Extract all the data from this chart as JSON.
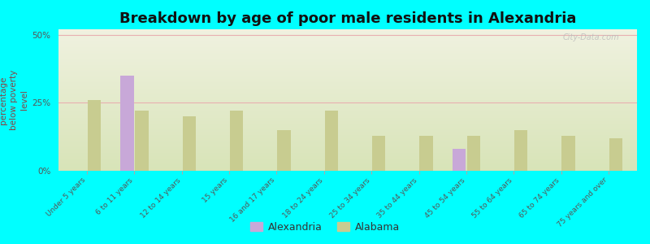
{
  "title": "Breakdown by age of poor male residents in Alexandria",
  "ylabel": "percentage\nbelow poverty\nlevel",
  "background_color": "#00FFFF",
  "plot_bg_top": "#f0f2e0",
  "plot_bg_bottom": "#d8e4b8",
  "categories": [
    "Under 5 years",
    "6 to 11 years",
    "12 to 14 years",
    "15 years",
    "16 and 17 years",
    "18 to 24 years",
    "25 to 34 years",
    "35 to 44 years",
    "45 to 54 years",
    "55 to 64 years",
    "65 to 74 years",
    "75 years and over"
  ],
  "alexandria_values": [
    0,
    35,
    0,
    0,
    0,
    0,
    0,
    0,
    8,
    0,
    0,
    0
  ],
  "alabama_values": [
    26,
    22,
    20,
    22,
    15,
    22,
    13,
    13,
    13,
    15,
    13,
    12
  ],
  "alexandria_color": "#c8a8d8",
  "alabama_color": "#c8cc90",
  "ylim": [
    0,
    52
  ],
  "yticks": [
    0,
    25,
    50
  ],
  "ytick_labels": [
    "0%",
    "25%",
    "50%"
  ],
  "bar_width": 0.28,
  "title_fontsize": 13,
  "axis_label_fontsize": 7.5,
  "tick_label_fontsize": 6.5,
  "legend_fontsize": 9,
  "watermark_text": "City-Data.com"
}
